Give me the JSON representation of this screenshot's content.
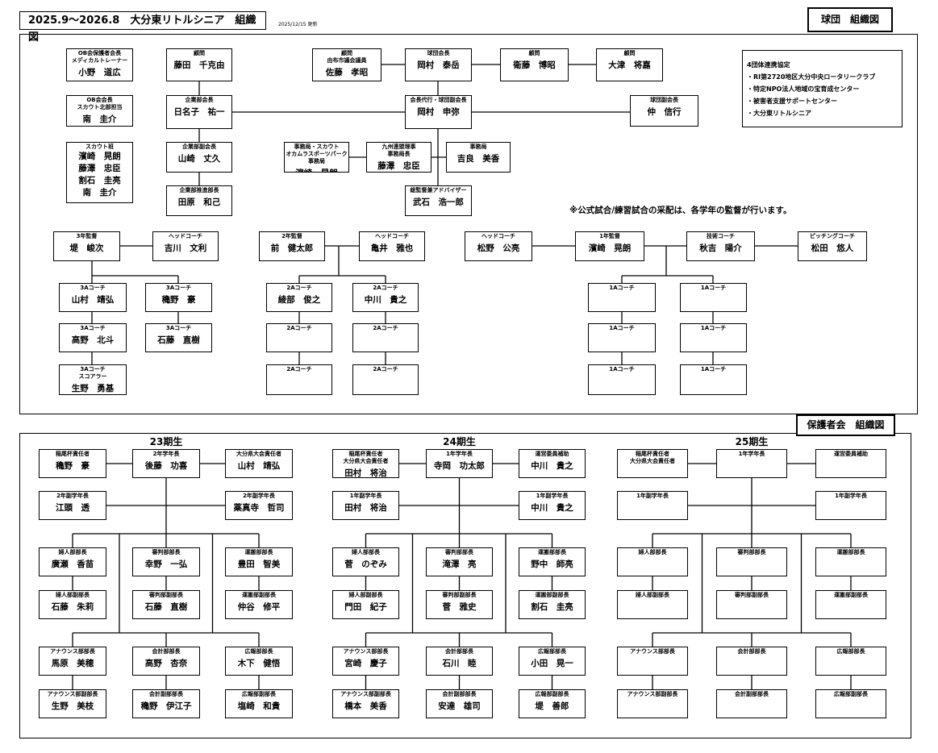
{
  "header": {
    "title": "2025.9～2026.8　大分東リトルシニア　組織図",
    "updated": "2025/12/15 更新",
    "club_chart_label": "球団　組織図"
  },
  "club": {
    "note": "※公式試合/練習試合の采配は、各学年の監督が行います。",
    "agreement": {
      "title": "4団体連携協定",
      "items": [
        "・RI第2720地区大分中央ロータリークラブ",
        "・特定NPO法人地域の宝育成センター",
        "・被害者支援サポートセンター",
        "・大分東リトルシニア"
      ]
    },
    "boxes": {
      "ob_parent": {
        "role": "OB会保護者会長\nメディカルトレーナー",
        "name": "小野　道広"
      },
      "ob_chair": {
        "role": "OB会会長\nスカウト北部担当",
        "name": "南　圭介"
      },
      "scout": {
        "role": "スカウト班",
        "name": "濱崎　晃朗\n藤澤　忠臣\n割石　圭亮\n南　圭介"
      },
      "advisor_fujita": {
        "role": "顧問",
        "name": "藤田　千克由"
      },
      "corp_chair": {
        "role": "企業部会長",
        "name": "日名子　祐一"
      },
      "corp_vice": {
        "role": "企業部副会長",
        "name": "山崎　丈久"
      },
      "corp_promo": {
        "role": "企業部推進部長",
        "name": "田原　和己"
      },
      "advisor_sato": {
        "role": "顧問\n由布市議会議員",
        "name": "佐藤　孝昭"
      },
      "president": {
        "role": "球団会長",
        "name": "岡村　泰岳"
      },
      "advisor_eto": {
        "role": "顧問",
        "name": "衛藤　博昭"
      },
      "advisor_otsu": {
        "role": "顧問",
        "name": "大津　将嘉"
      },
      "acting": {
        "role": "会長代行・球団副会長",
        "name": "岡村　申弥"
      },
      "vice_naka": {
        "role": "球団副会長",
        "name": "仲　信行"
      },
      "office_scout": {
        "role": "事務局・スカウト\nオカムラスポーツパーク事務局",
        "name": "濱崎　晃朗"
      },
      "office_chief": {
        "role": "九州連盟理事\n事務局長",
        "name": "藤澤　忠臣"
      },
      "office": {
        "role": "事務局",
        "name": "吉良　美香"
      },
      "gm": {
        "role": "総監督兼アドバイザー",
        "name": "武石　浩一郎"
      },
      "c3_mgr": {
        "role": "3年監督",
        "name": "堤　峻次"
      },
      "c3_head": {
        "role": "ヘッドコーチ",
        "name": "吉川　文利"
      },
      "c2_mgr": {
        "role": "2年監督",
        "name": "前　健太郎"
      },
      "c2_head": {
        "role": "ヘッドコーチ",
        "name": "亀井　雅也"
      },
      "c1_head": {
        "role": "ヘッドコーチ",
        "name": "松野　公亮"
      },
      "c1_mgr": {
        "role": "1年監督",
        "name": "濱崎　晃朗"
      },
      "c1_tech": {
        "role": "技術コーチ",
        "name": "秋吉　陽介"
      },
      "c1_pitch": {
        "role": "ピッチングコーチ",
        "name": "松田　悠人"
      },
      "a3_1": {
        "role": "3Aコーチ",
        "name": "山村　靖弘"
      },
      "a3_2": {
        "role": "3Aコーチ",
        "name": "穐野　豪"
      },
      "a3_3": {
        "role": "3Aコーチ",
        "name": "高野　北斗"
      },
      "a3_4": {
        "role": "3Aコーチ",
        "name": "石藤　直樹"
      },
      "a3_5": {
        "role": "3Aコーチ\nスコアラー",
        "name": "生野　勇基"
      },
      "a2_1": {
        "role": "2Aコーチ",
        "name": "綾部　俊之"
      },
      "a2_2": {
        "role": "2Aコーチ",
        "name": "中川　貴之"
      },
      "a2_3": {
        "role": "2Aコーチ",
        "name": ""
      },
      "a2_4": {
        "role": "2Aコーチ",
        "name": ""
      },
      "a2_5": {
        "role": "2Aコーチ",
        "name": ""
      },
      "a2_6": {
        "role": "2Aコーチ",
        "name": ""
      },
      "a1_1": {
        "role": "1Aコーチ",
        "name": ""
      },
      "a1_2": {
        "role": "1Aコーチ",
        "name": ""
      },
      "a1_3": {
        "role": "1Aコーチ",
        "name": ""
      },
      "a1_4": {
        "role": "1Aコーチ",
        "name": ""
      },
      "a1_5": {
        "role": "1Aコーチ",
        "name": ""
      },
      "a1_6": {
        "role": "1Aコーチ",
        "name": ""
      }
    }
  },
  "parents": {
    "chart_label": "保護者会　組織図",
    "periods": [
      {
        "label": "23期生",
        "boxes": [
          {
            "role": "稲尾杯責任者",
            "name": "穐野　豪"
          },
          {
            "role": "2年学年長",
            "name": "後藤　功喜"
          },
          {
            "role": "大分県大会責任者",
            "name": "山村　靖弘"
          },
          {
            "role": "2年副学年長",
            "name": "江頭　透"
          },
          {
            "role": "2年副学年長",
            "name": "薬真寺　哲司"
          },
          {
            "role": "婦人部部長",
            "name": "廣瀬　香苗"
          },
          {
            "role": "審判部部長",
            "name": "幸野　一弘"
          },
          {
            "role": "運搬部部長",
            "name": "豊田　智美"
          },
          {
            "role": "婦人部副部長",
            "name": "石藤　朱莉"
          },
          {
            "role": "審判部副部長",
            "name": "石藤　直樹"
          },
          {
            "role": "運搬部副部長",
            "name": "仲谷　修平"
          },
          {
            "role": "アナウンス部部長",
            "name": "馬原　美穂"
          },
          {
            "role": "会計部部長",
            "name": "高野　杏奈"
          },
          {
            "role": "広報部部長",
            "name": "木下　健悟"
          },
          {
            "role": "アナウンス部副部長",
            "name": "生野　美枝"
          },
          {
            "role": "会計副部部長",
            "name": "穐野　伊江子"
          },
          {
            "role": "広報部副部長",
            "name": "塩崎　和貴"
          }
        ]
      },
      {
        "label": "24期生",
        "boxes": [
          {
            "role": "稲尾杯責任者\n大分県大会責任者",
            "name": "田村　将治"
          },
          {
            "role": "1年学年長",
            "name": "寺岡　功太郎"
          },
          {
            "role": "運営委員補助",
            "name": "中川　貴之"
          },
          {
            "role": "1年副学年長",
            "name": "田村　将治"
          },
          {
            "role": "1年副学年長",
            "name": "中川　貴之"
          },
          {
            "role": "婦人部部長",
            "name": "菅　のぞみ"
          },
          {
            "role": "審判部部長",
            "name": "滝澤　亮"
          },
          {
            "role": "運搬部部長",
            "name": "野中　師亮"
          },
          {
            "role": "婦人部副部長",
            "name": "門田　紀子"
          },
          {
            "role": "審判部副部長",
            "name": "菅　雅史"
          },
          {
            "role": "運搬部副部長",
            "name": "割石　圭亮"
          },
          {
            "role": "アナウンス部部長",
            "name": "宮崎　慶子"
          },
          {
            "role": "会計部部長",
            "name": "石川　睦"
          },
          {
            "role": "広報部部長",
            "name": "小田　晃一"
          },
          {
            "role": "アナウンス部副部長",
            "name": "橋本　美香"
          },
          {
            "role": "会計副部部長",
            "name": "安達　雄司"
          },
          {
            "role": "広報部副部長",
            "name": "堤　善郎"
          }
        ]
      },
      {
        "label": "25期生",
        "boxes": [
          {
            "role": "稲尾杯責任者\n大分県大会責任者",
            "name": ""
          },
          {
            "role": "1年学年長",
            "name": ""
          },
          {
            "role": "運営委員補助",
            "name": ""
          },
          {
            "role": "1年副学年長",
            "name": ""
          },
          {
            "role": "1年副学年長",
            "name": ""
          },
          {
            "role": "婦人部部長",
            "name": ""
          },
          {
            "role": "審判部部長",
            "name": ""
          },
          {
            "role": "運搬部部長",
            "name": ""
          },
          {
            "role": "婦人部副部長",
            "name": ""
          },
          {
            "role": "審判部副部長",
            "name": ""
          },
          {
            "role": "運搬部副部長",
            "name": ""
          },
          {
            "role": "アナウンス部部長",
            "name": ""
          },
          {
            "role": "会計部部長",
            "name": ""
          },
          {
            "role": "広報部部長",
            "name": ""
          },
          {
            "role": "アナウンス部副部長",
            "name": ""
          },
          {
            "role": "会計副部部長",
            "name": ""
          },
          {
            "role": "広報部副部長",
            "name": ""
          }
        ]
      }
    ]
  }
}
